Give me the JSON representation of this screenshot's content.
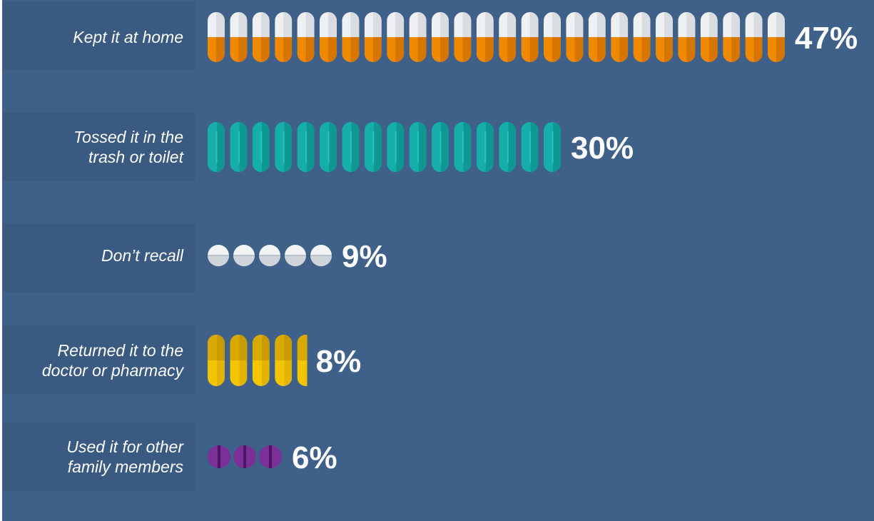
{
  "chart_data": {
    "type": "bar",
    "orientation": "horizontal",
    "title": "",
    "xlabel": "",
    "ylabel": "",
    "categories": [
      [
        "Kept it at home"
      ],
      [
        "Tossed it in the",
        "trash or toilet"
      ],
      [
        "Don’t recall"
      ],
      [
        "Returned it to the",
        "doctor or pharmacy"
      ],
      [
        "Used it for other",
        "family members"
      ]
    ],
    "values": [
      47,
      30,
      9,
      8,
      6
    ],
    "value_labels": [
      "47%",
      "30%",
      "9%",
      "8%",
      "6%"
    ],
    "pill_counts": [
      26,
      16,
      5,
      4.5,
      3
    ],
    "pill_styles": [
      "capsule-white-orange",
      "capsule-teal",
      "tablet-white",
      "capsule-yellow",
      "tablet-purple"
    ],
    "colors": {
      "background": "#3e6089",
      "label_panel": "#3a5a82",
      "orange": "#ef8a00",
      "orange_shade": "#d67600",
      "capsule_white": "#eef0f2",
      "teal": "#16aea9",
      "teal_shade": "#0f9792",
      "tablet_white": "#f2f3f4",
      "tablet_shade": "#cfd5db",
      "yellow": "#f3c400",
      "yellow_shade": "#d9a900",
      "purple": "#7d2f98",
      "purple_shade": "#4e1566"
    },
    "grid": false,
    "legend": "none"
  }
}
